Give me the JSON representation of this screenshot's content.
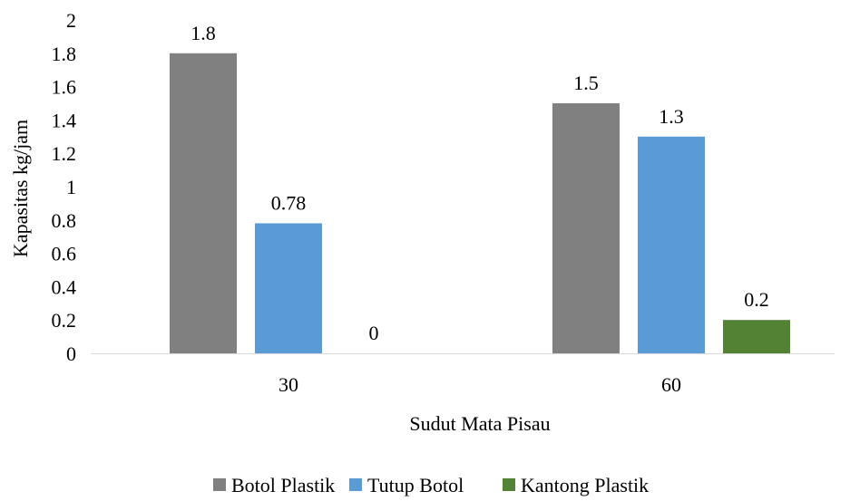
{
  "chart_data": {
    "type": "bar",
    "title": "",
    "xlabel": "Sudut Mata Pisau",
    "ylabel": "Kapasitas kg/jam",
    "categories": [
      "30",
      "60"
    ],
    "ylim": [
      0,
      2
    ],
    "yticks": [
      "0",
      "0.2",
      "0.4",
      "0.6",
      "0.8",
      "1",
      "1.2",
      "1.4",
      "1.6",
      "1.8",
      "2"
    ],
    "grid": false,
    "legend_position": "bottom",
    "series": [
      {
        "name": "Botol Plastik",
        "color": "#808080",
        "values": [
          1.8,
          1.5
        ],
        "labels": [
          "1.8",
          "1.5"
        ]
      },
      {
        "name": "Tutup Botol",
        "color": "#5B9BD5",
        "values": [
          0.78,
          1.3
        ],
        "labels": [
          "0.78",
          "1.3"
        ]
      },
      {
        "name": "Kantong Plastik",
        "color": "#548235",
        "values": [
          0,
          0.2
        ],
        "labels": [
          "0",
          "0.2"
        ]
      }
    ]
  }
}
